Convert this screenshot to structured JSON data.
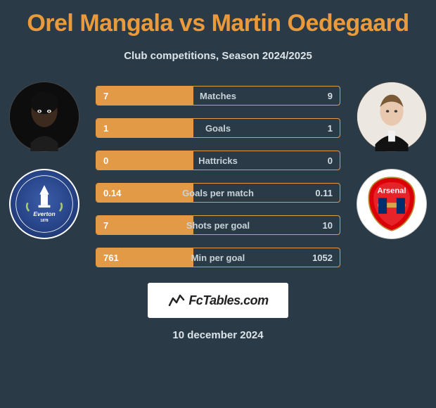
{
  "title": "Orel Mangala vs Martin Oedegaard",
  "subtitle": "Club competitions, Season 2024/2025",
  "date": "10 december 2024",
  "footer_brand": "FcTables.com",
  "colors": {
    "background": "#2a3b47",
    "accent": "#e29a46",
    "title": "#ea9a3b",
    "text_light": "#dce3e8",
    "stat_label": "#c8d2d9"
  },
  "player_left": {
    "name": "Orel Mangala",
    "club": "Everton",
    "club_colors": {
      "primary": "#274488",
      "secondary": "#ffffff"
    }
  },
  "player_right": {
    "name": "Martin Oedegaard",
    "club": "Arsenal",
    "club_colors": {
      "primary": "#db0007",
      "secondary": "#ffffff"
    }
  },
  "stats": [
    {
      "label": "Matches",
      "left_val": "7",
      "right_val": "9",
      "left_pct": 40,
      "right_pct": 0
    },
    {
      "label": "Goals",
      "left_val": "1",
      "right_val": "1",
      "left_pct": 40,
      "right_pct": 0
    },
    {
      "label": "Hattricks",
      "left_val": "0",
      "right_val": "0",
      "left_pct": 40,
      "right_pct": 0
    },
    {
      "label": "Goals per match",
      "left_val": "0.14",
      "right_val": "0.11",
      "left_pct": 40,
      "right_pct": 0
    },
    {
      "label": "Shots per goal",
      "left_val": "7",
      "right_val": "10",
      "left_pct": 40,
      "right_pct": 0
    },
    {
      "label": "Min per goal",
      "left_val": "761",
      "right_val": "1052",
      "left_pct": 40,
      "right_pct": 0
    }
  ]
}
